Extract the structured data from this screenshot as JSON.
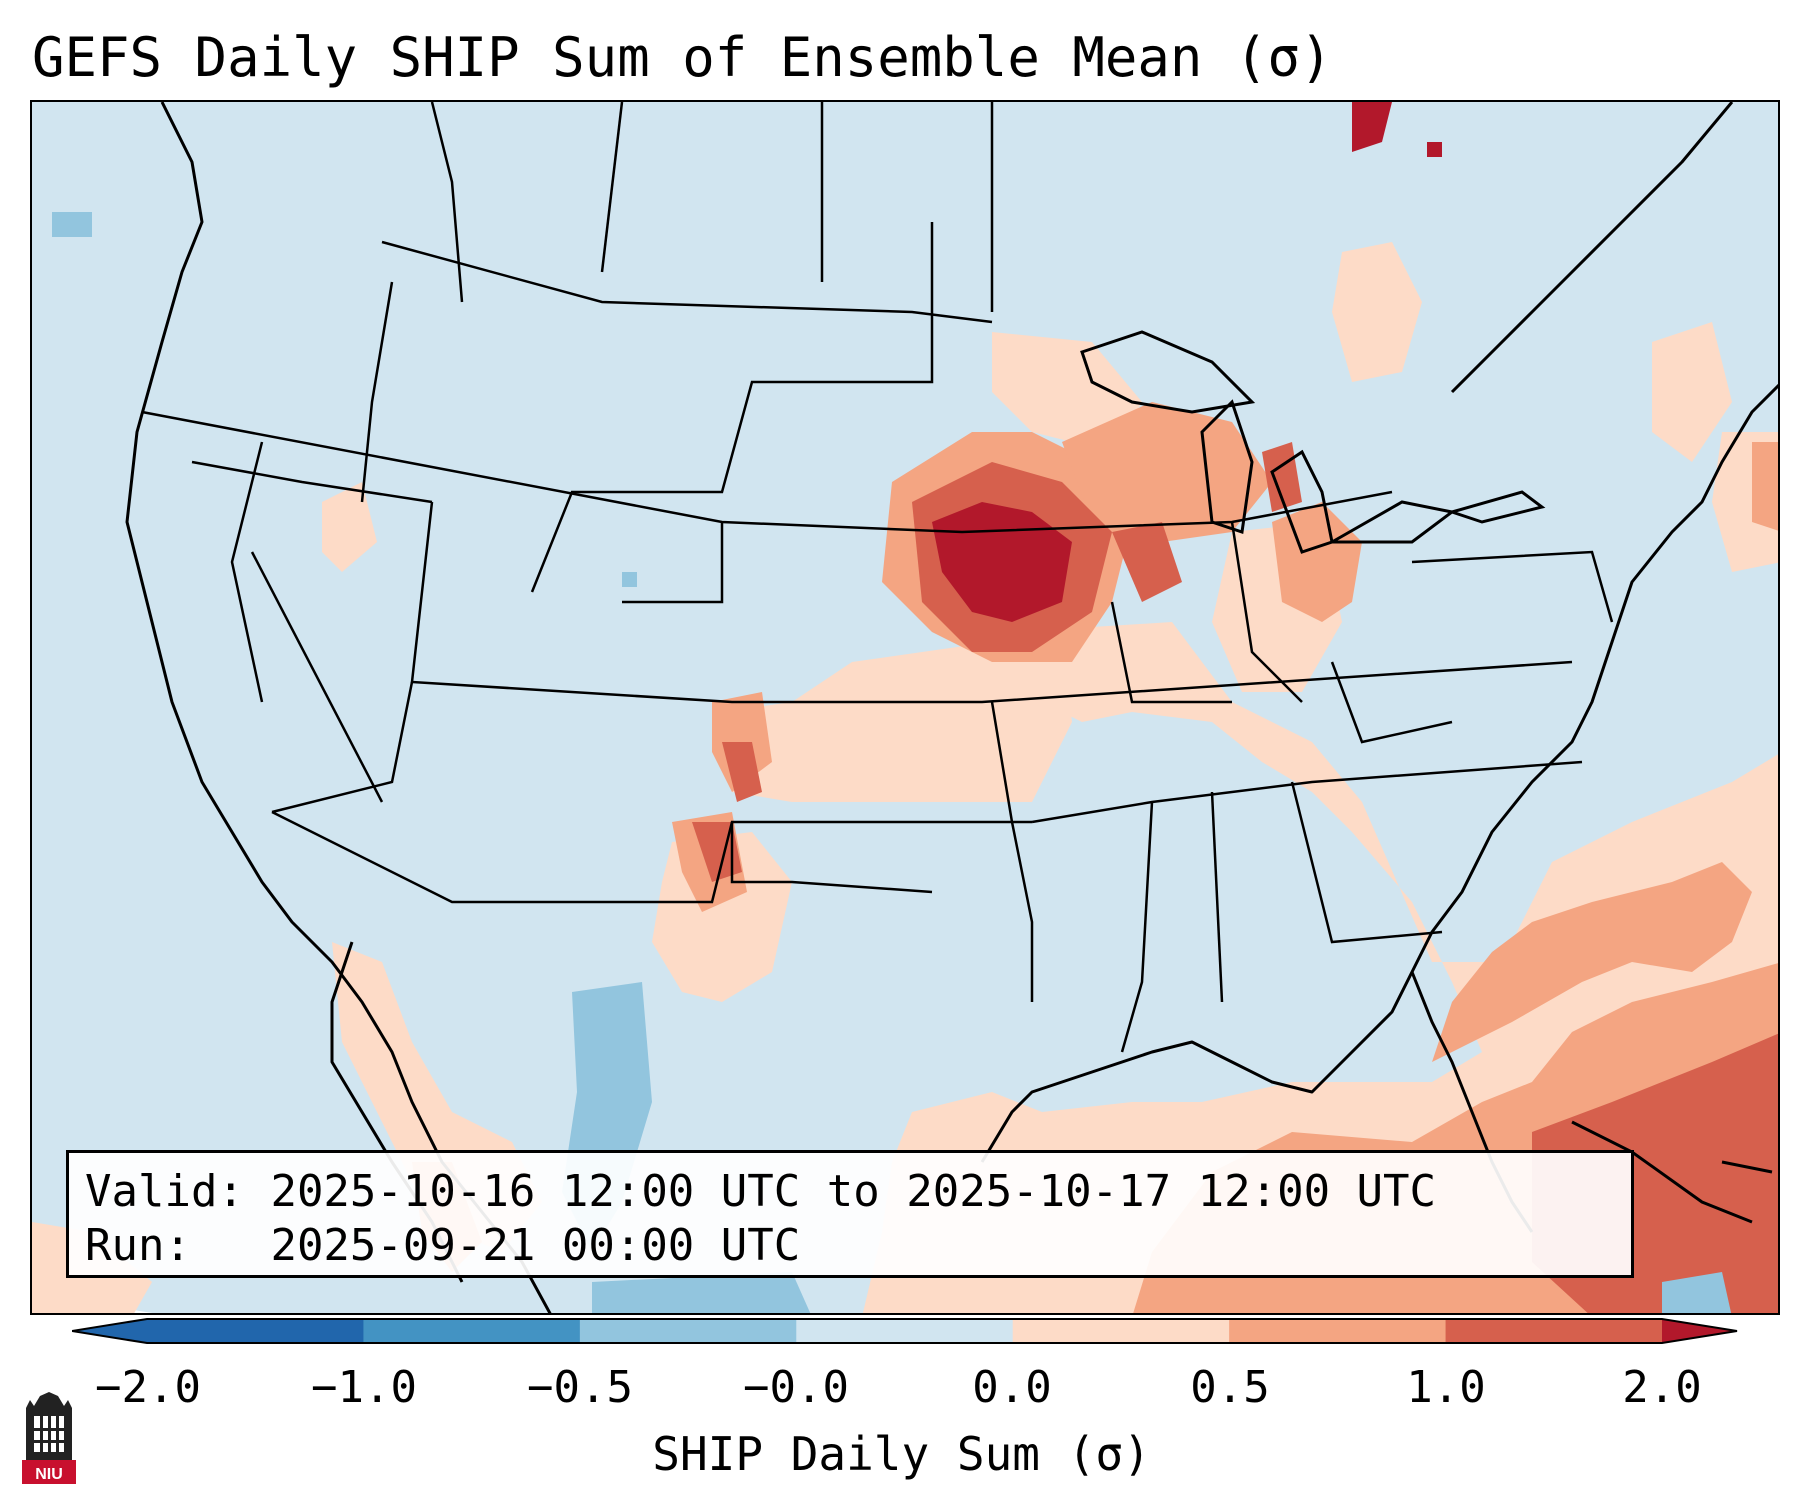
{
  "title": "GEFS Daily SHIP Sum of Ensemble Mean (σ)",
  "info": {
    "valid_label": "Valid:",
    "valid_value": "2025-10-16 12:00 UTC to 2025-10-17 12:00 UTC",
    "run_label": "Run:",
    "run_value": "2025-09-21 00:00 UTC"
  },
  "colorbar": {
    "label": "SHIP Daily Sum (σ)",
    "ticks": [
      "−2.0",
      "−1.0",
      "−0.5",
      "−0.0",
      "0.0",
      "0.5",
      "1.0",
      "2.0"
    ],
    "bin_colors": [
      "#2166ac",
      "#4393c3",
      "#92c5de",
      "#d1e5f0",
      "#fddbc7",
      "#f4a582",
      "#d6604d",
      "#b2182b"
    ],
    "extend": "both"
  },
  "map": {
    "background_color": "#d1e5f0",
    "region": "Continental United States",
    "projection": "Lambert Conformal"
  },
  "logo": {
    "text": "NIU"
  }
}
